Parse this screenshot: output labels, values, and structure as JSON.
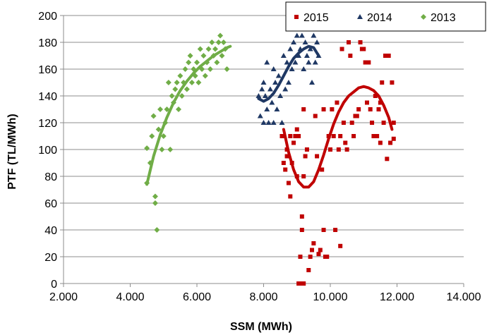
{
  "chart_data": {
    "type": "scatter",
    "title": "",
    "xlabel": "SSM (MWh)",
    "ylabel": "PTF  (TL/MWh)",
    "xlim": [
      2000,
      14000
    ],
    "ylim": [
      0,
      200
    ],
    "x_ticks": [
      2000,
      4000,
      6000,
      8000,
      10000,
      12000,
      14000
    ],
    "x_tick_labels": [
      "2.000",
      "4.000",
      "6.000",
      "8.000",
      "10.000",
      "12.000",
      "14.000"
    ],
    "y_ticks": [
      0,
      20,
      40,
      60,
      80,
      100,
      120,
      140,
      160,
      180,
      200
    ],
    "y_tick_labels": [
      "0",
      "20",
      "40",
      "60",
      "80",
      "100",
      "120",
      "140",
      "160",
      "180",
      "200"
    ],
    "grid": "horizontal",
    "legend_position": "top-right",
    "series": [
      {
        "name": "2015",
        "marker": "square",
        "color": "#c00000",
        "points": [
          [
            8550,
            110
          ],
          [
            8600,
            90
          ],
          [
            8650,
            85
          ],
          [
            8700,
            100
          ],
          [
            8700,
            95
          ],
          [
            8750,
            75
          ],
          [
            8800,
            65
          ],
          [
            8800,
            110
          ],
          [
            8850,
            90
          ],
          [
            8900,
            105
          ],
          [
            8950,
            110
          ],
          [
            9000,
            115
          ],
          [
            9000,
            80
          ],
          [
            9050,
            110
          ],
          [
            9050,
            0
          ],
          [
            9100,
            20
          ],
          [
            9100,
            0
          ],
          [
            9150,
            50
          ],
          [
            9150,
            40
          ],
          [
            9200,
            80
          ],
          [
            9200,
            0
          ],
          [
            9200,
            130
          ],
          [
            9250,
            95
          ],
          [
            9300,
            100
          ],
          [
            9350,
            10
          ],
          [
            9400,
            20
          ],
          [
            9450,
            25
          ],
          [
            9500,
            30
          ],
          [
            9550,
            125
          ],
          [
            9600,
            95
          ],
          [
            9650,
            22
          ],
          [
            9700,
            25
          ],
          [
            9750,
            85
          ],
          [
            9800,
            130
          ],
          [
            9800,
            40
          ],
          [
            9850,
            20
          ],
          [
            9900,
            20
          ],
          [
            9950,
            110
          ],
          [
            10000,
            100
          ],
          [
            10050,
            130
          ],
          [
            10100,
            110
          ],
          [
            10150,
            40
          ],
          [
            10200,
            135
          ],
          [
            10250,
            100
          ],
          [
            10300,
            110
          ],
          [
            10300,
            28
          ],
          [
            10350,
            175
          ],
          [
            10400,
            120
          ],
          [
            10450,
            105
          ],
          [
            10500,
            100
          ],
          [
            10550,
            180
          ],
          [
            10600,
            170
          ],
          [
            10650,
            120
          ],
          [
            10700,
            110
          ],
          [
            10750,
            125
          ],
          [
            10800,
            125
          ],
          [
            10850,
            130
          ],
          [
            10900,
            180
          ],
          [
            10950,
            175
          ],
          [
            11000,
            175
          ],
          [
            11050,
            165
          ],
          [
            11100,
            135
          ],
          [
            11150,
            165
          ],
          [
            11200,
            130
          ],
          [
            11250,
            120
          ],
          [
            11300,
            110
          ],
          [
            11350,
            140
          ],
          [
            11400,
            110
          ],
          [
            11450,
            130
          ],
          [
            11500,
            135
          ],
          [
            11500,
            105
          ],
          [
            11550,
            150
          ],
          [
            11600,
            120
          ],
          [
            11650,
            170
          ],
          [
            11700,
            93
          ],
          [
            11750,
            170
          ],
          [
            11800,
            105
          ],
          [
            11850,
            150
          ],
          [
            11900,
            120
          ],
          [
            11900,
            108
          ]
        ],
        "trend": [
          [
            8600,
            115
          ],
          [
            8750,
            98
          ],
          [
            8900,
            85
          ],
          [
            9050,
            76
          ],
          [
            9200,
            72
          ],
          [
            9350,
            72
          ],
          [
            9500,
            76
          ],
          [
            9650,
            85
          ],
          [
            9800,
            96
          ],
          [
            9950,
            108
          ],
          [
            10100,
            119
          ],
          [
            10250,
            128
          ],
          [
            10400,
            135
          ],
          [
            10550,
            140
          ],
          [
            10700,
            143
          ],
          [
            10850,
            146
          ],
          [
            11000,
            147
          ],
          [
            11150,
            146
          ],
          [
            11300,
            144
          ],
          [
            11450,
            140
          ],
          [
            11600,
            133
          ],
          [
            11750,
            124
          ],
          [
            11850,
            115
          ]
        ]
      },
      {
        "name": "2014",
        "marker": "triangle",
        "color": "#1f3864",
        "points": [
          [
            7850,
            140
          ],
          [
            7900,
            125
          ],
          [
            7950,
            145
          ],
          [
            8000,
            120
          ],
          [
            8000,
            150
          ],
          [
            8050,
            140
          ],
          [
            8100,
            165
          ],
          [
            8100,
            130
          ],
          [
            8150,
            120
          ],
          [
            8200,
            145
          ],
          [
            8250,
            135
          ],
          [
            8300,
            160
          ],
          [
            8300,
            120
          ],
          [
            8350,
            150
          ],
          [
            8400,
            130
          ],
          [
            8450,
            155
          ],
          [
            8500,
            140
          ],
          [
            8550,
            120
          ],
          [
            8600,
            170
          ],
          [
            8650,
            145
          ],
          [
            8700,
            165
          ],
          [
            8750,
            150
          ],
          [
            8800,
            175
          ],
          [
            8850,
            160
          ],
          [
            8900,
            180
          ],
          [
            8950,
            165
          ],
          [
            9000,
            185
          ],
          [
            9050,
            170
          ],
          [
            9100,
            175
          ],
          [
            9150,
            185
          ],
          [
            9200,
            160
          ],
          [
            9250,
            180
          ],
          [
            9300,
            170
          ],
          [
            9350,
            165
          ],
          [
            9400,
            175
          ],
          [
            9450,
            150
          ],
          [
            9500,
            185
          ],
          [
            9550,
            165
          ],
          [
            9600,
            180
          ],
          [
            9650,
            170
          ]
        ],
        "trend": [
          [
            7850,
            138
          ],
          [
            8000,
            136
          ],
          [
            8150,
            138
          ],
          [
            8300,
            142
          ],
          [
            8450,
            148
          ],
          [
            8600,
            155
          ],
          [
            8750,
            162
          ],
          [
            8900,
            168
          ],
          [
            9050,
            172
          ],
          [
            9200,
            175
          ],
          [
            9350,
            177
          ],
          [
            9500,
            176
          ],
          [
            9650,
            170
          ]
        ]
      },
      {
        "name": "2013",
        "marker": "diamond",
        "color": "#70ad47",
        "points": [
          [
            4500,
            75
          ],
          [
            4500,
            101
          ],
          [
            4600,
            90
          ],
          [
            4650,
            110
          ],
          [
            4700,
            125
          ],
          [
            4750,
            60
          ],
          [
            4750,
            65
          ],
          [
            4800,
            40
          ],
          [
            4850,
            115
          ],
          [
            4900,
            130
          ],
          [
            4950,
            100
          ],
          [
            5000,
            110
          ],
          [
            5050,
            120
          ],
          [
            5100,
            130
          ],
          [
            5150,
            150
          ],
          [
            5200,
            100
          ],
          [
            5250,
            140
          ],
          [
            5300,
            135
          ],
          [
            5350,
            145
          ],
          [
            5400,
            150
          ],
          [
            5450,
            130
          ],
          [
            5500,
            155
          ],
          [
            5550,
            140
          ],
          [
            5600,
            150
          ],
          [
            5650,
            160
          ],
          [
            5700,
            145
          ],
          [
            5750,
            165
          ],
          [
            5800,
            170
          ],
          [
            5850,
            150
          ],
          [
            5900,
            160
          ],
          [
            5950,
            155
          ],
          [
            6000,
            165
          ],
          [
            6050,
            150
          ],
          [
            6100,
            175
          ],
          [
            6150,
            160
          ],
          [
            6200,
            170
          ],
          [
            6250,
            155
          ],
          [
            6300,
            165
          ],
          [
            6350,
            175
          ],
          [
            6400,
            160
          ],
          [
            6450,
            180
          ],
          [
            6500,
            170
          ],
          [
            6550,
            175
          ],
          [
            6600,
            165
          ],
          [
            6650,
            180
          ],
          [
            6700,
            185
          ],
          [
            6750,
            170
          ],
          [
            6800,
            180
          ],
          [
            6850,
            175
          ],
          [
            6900,
            160
          ]
        ],
        "trend": [
          [
            4500,
            74
          ],
          [
            4700,
            95
          ],
          [
            4900,
            111
          ],
          [
            5100,
            124
          ],
          [
            5300,
            135
          ],
          [
            5500,
            144
          ],
          [
            5700,
            151
          ],
          [
            5900,
            157
          ],
          [
            6100,
            162
          ],
          [
            6300,
            166
          ],
          [
            6500,
            170
          ],
          [
            6700,
            173
          ],
          [
            6900,
            176
          ],
          [
            7000,
            177
          ]
        ]
      }
    ]
  }
}
